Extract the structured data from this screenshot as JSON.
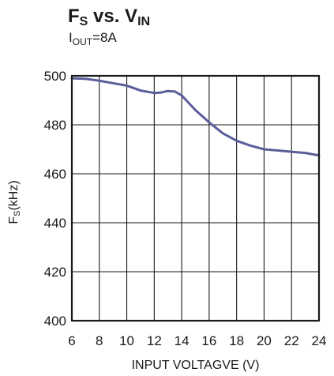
{
  "chart_data": {
    "type": "line",
    "title": {
      "main": "F",
      "main_sub": "S",
      "mid": " vs. V",
      "mid_sub": "IN"
    },
    "subtitle": {
      "prefix": "I",
      "prefix_sub": "OUT",
      "suffix": "=8A"
    },
    "xlabel": "INPUT VOLTAGVE (V)",
    "ylabel": {
      "main": "F",
      "main_sub": "S",
      "suffix": "(kHz)"
    },
    "xlim": [
      6,
      24
    ],
    "ylim": [
      400,
      500
    ],
    "xticks": [
      6,
      8,
      10,
      12,
      14,
      16,
      18,
      20,
      22,
      24
    ],
    "yticks": [
      400,
      420,
      440,
      460,
      480,
      500
    ],
    "grid": true,
    "series": [
      {
        "color": "#5a5e9a",
        "x": [
          6,
          7,
          8,
          9,
          10,
          11,
          12,
          12.5,
          13,
          13.5,
          14,
          14.5,
          15,
          15.5,
          16,
          17,
          18,
          19,
          20,
          21,
          22,
          23,
          24
        ],
        "y": [
          499,
          498.8,
          498,
          497,
          496,
          494,
          493,
          493.2,
          493.8,
          493.6,
          492,
          489,
          486,
          483.5,
          481,
          476.5,
          473.5,
          471.5,
          470,
          469.5,
          469,
          468.5,
          467.5
        ]
      }
    ]
  }
}
